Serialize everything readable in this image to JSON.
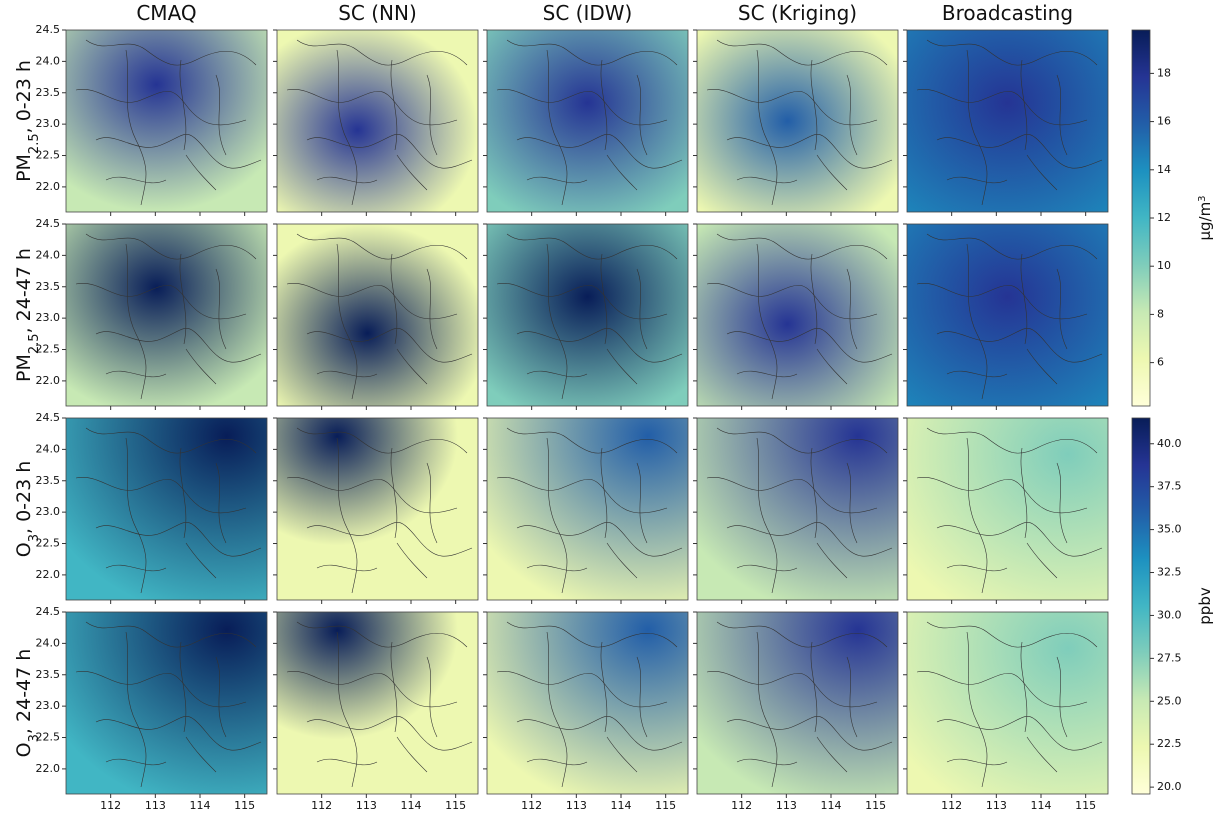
{
  "chart_data": {
    "type": "map-grid",
    "column_titles": [
      "CMAQ",
      "SC (NN)",
      "SC (IDW)",
      "SC (Kriging)",
      "Broadcasting"
    ],
    "row_labels": [
      {
        "main": "PM",
        "sub": "2.5",
        "rest": ", 0-23 h"
      },
      {
        "main": "PM",
        "sub": "2.5",
        "rest": ", 24-47 h"
      },
      {
        "main": "O",
        "sub": "3",
        "rest": ", 0-23 h"
      },
      {
        "main": "O",
        "sub": "3",
        "rest": ", 24-47 h"
      }
    ],
    "xlim": [
      111.0,
      115.5
    ],
    "xticks": [
      112,
      113,
      114,
      115
    ],
    "ylim": [
      21.6,
      24.5
    ],
    "yticks": [
      {
        "value": 22.0,
        "label": "22.0"
      },
      22.5,
      {
        "value": 23.0,
        "label": "23.0"
      },
      23.5,
      {
        "value": 24.0,
        "label": "24.0"
      },
      24.5
    ],
    "colorbars": [
      {
        "rows": [
          0,
          1
        ],
        "unit": {
          "main": "μg/m",
          "sup": "3"
        },
        "lim": [
          4.2,
          19.8
        ],
        "ticks": [
          6,
          8,
          10,
          12,
          14,
          16,
          18
        ]
      },
      {
        "rows": [
          2,
          3
        ],
        "unit": {
          "main": "ppbv"
        },
        "lim": [
          19.6,
          41.5
        ],
        "ticks": [
          {
            "value": 20.0,
            "label": "20.0"
          },
          22.5,
          {
            "value": 25.0,
            "label": "25.0"
          },
          27.5,
          {
            "value": 30.0,
            "label": "30.0"
          },
          32.5,
          {
            "value": 35.0,
            "label": "35.0"
          },
          37.5,
          {
            "value": 40.0,
            "label": "40.0"
          }
        ]
      }
    ],
    "colormap": [
      "#ffffd9",
      "#edf8b1",
      "#c7e9b4",
      "#7fcdbb",
      "#41b6c4",
      "#1d91c0",
      "#225ea8",
      "#253494",
      "#081d58"
    ]
  }
}
